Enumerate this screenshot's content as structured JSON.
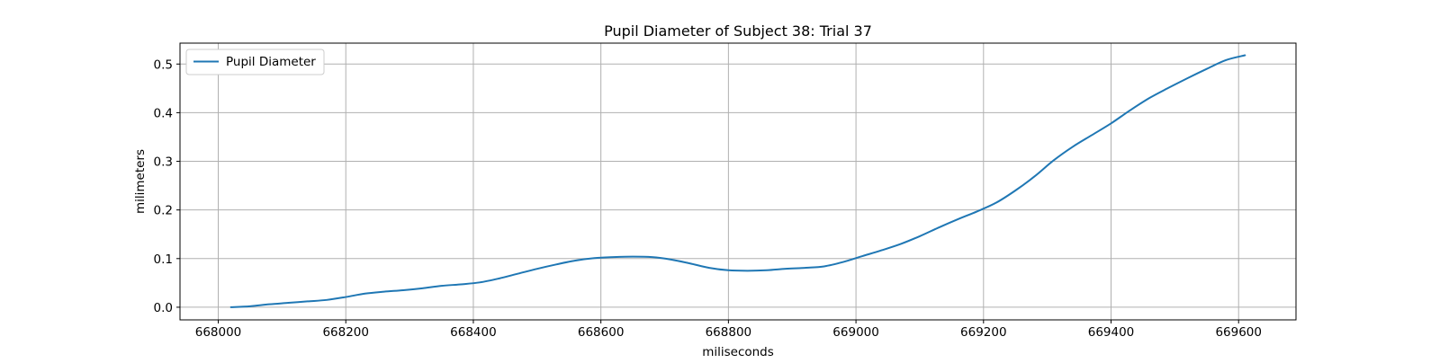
{
  "chart_data": {
    "type": "line",
    "title": "Pupil Diameter of Subject 38: Trial 37",
    "xlabel": "miliseconds",
    "ylabel": "milimeters",
    "xlim": [
      667940,
      669690
    ],
    "ylim": [
      -0.026,
      0.543
    ],
    "xticks": [
      668000,
      668200,
      668400,
      668600,
      668800,
      669000,
      669200,
      669400,
      669600
    ],
    "yticks": [
      0.0,
      0.1,
      0.2,
      0.3,
      0.4,
      0.5
    ],
    "ytick_labels": [
      "0.0",
      "0.1",
      "0.2",
      "0.3",
      "0.4",
      "0.5"
    ],
    "grid": true,
    "legend_position": "upper-left",
    "series": [
      {
        "name": "Pupil Diameter",
        "color": "#1f77b4",
        "x": [
          668020,
          668050,
          668080,
          668110,
          668140,
          668170,
          668200,
          668230,
          668260,
          668290,
          668320,
          668350,
          668380,
          668410,
          668440,
          668470,
          668500,
          668530,
          668560,
          668590,
          668620,
          668650,
          668680,
          668710,
          668740,
          668770,
          668800,
          668830,
          668860,
          668890,
          668920,
          668950,
          668980,
          669010,
          669040,
          669070,
          669100,
          669130,
          669160,
          669190,
          669220,
          669250,
          669280,
          669310,
          669340,
          669370,
          669400,
          669430,
          669460,
          669490,
          669520,
          669550,
          669580,
          669610
        ],
        "y": [
          0.0,
          0.002,
          0.006,
          0.009,
          0.012,
          0.015,
          0.021,
          0.028,
          0.032,
          0.035,
          0.039,
          0.044,
          0.047,
          0.051,
          0.059,
          0.069,
          0.079,
          0.088,
          0.096,
          0.101,
          0.103,
          0.104,
          0.103,
          0.098,
          0.09,
          0.081,
          0.076,
          0.075,
          0.076,
          0.079,
          0.081,
          0.084,
          0.093,
          0.105,
          0.117,
          0.13,
          0.146,
          0.164,
          0.181,
          0.197,
          0.215,
          0.24,
          0.269,
          0.302,
          0.33,
          0.354,
          0.378,
          0.405,
          0.43,
          0.451,
          0.471,
          0.49,
          0.508,
          0.518
        ]
      }
    ]
  }
}
